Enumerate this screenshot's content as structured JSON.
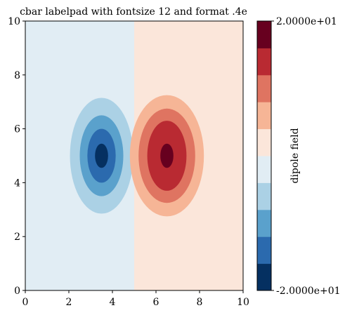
{
  "chart_data": {
    "type": "contourf",
    "title": "cbar labelpad with fontsize 12 and format .4e",
    "x_range": [
      0,
      10
    ],
    "y_range": [
      0,
      10
    ],
    "x_ticks": [
      "0",
      "2",
      "4",
      "6",
      "8",
      "10"
    ],
    "y_ticks": [
      "0",
      "2",
      "4",
      "6",
      "8",
      "10"
    ],
    "field": "dipole: negative lobe centered near (3.5, 5), positive lobe centered near (6.5, 5), sign change along x = 5",
    "negative_lobe": {
      "center": [
        3.5,
        5.0
      ]
    },
    "positive_lobe": {
      "center": [
        6.5,
        5.0
      ]
    },
    "colorbar": {
      "label": "dipole field",
      "min_label": "-2.0000e+01",
      "max_label": "2.0000e+01",
      "levels": 10,
      "colors": [
        "#053061",
        "#2166ac",
        "#4393c3",
        "#92c5de",
        "#d1e5f0",
        "#fddbc7",
        "#f4a582",
        "#d6604d",
        "#b2182b",
        "#67001f"
      ],
      "bands_shown": [
        {
          "color": "#053061"
        },
        {
          "color": "#2b6aae"
        },
        {
          "color": "#5aa1cc"
        },
        {
          "color": "#abd1e5"
        },
        {
          "color": "#e1edf4"
        },
        {
          "color": "#fbe6da"
        },
        {
          "color": "#f6b596"
        },
        {
          "color": "#df7461"
        },
        {
          "color": "#b92a32"
        },
        {
          "color": "#67001f"
        }
      ]
    },
    "filled_regions": [
      {
        "side": "negative",
        "level": 1,
        "color": "#e1edf4",
        "rx": 1.55,
        "ry": 2.3
      },
      {
        "side": "negative",
        "level": 2,
        "color": "#abd1e5",
        "rx": 1.45,
        "ry": 2.15
      },
      {
        "side": "negative",
        "level": 3,
        "color": "#5aa1cc",
        "rx": 1.0,
        "ry": 1.5
      },
      {
        "side": "negative",
        "level": 4,
        "color": "#2b6aae",
        "rx": 0.65,
        "ry": 1.0
      },
      {
        "side": "negative",
        "level": 5,
        "color": "#053061",
        "rx": 0.3,
        "ry": 0.45
      },
      {
        "side": "positive",
        "level": 1,
        "color": "#fbe6da",
        "rx": 1.55,
        "ry": 2.3
      },
      {
        "side": "positive",
        "level": 2,
        "color": "#f6b596",
        "rx": 1.7,
        "ry": 2.25
      },
      {
        "side": "positive",
        "level": 3,
        "color": "#df7461",
        "rx": 1.3,
        "ry": 1.75
      },
      {
        "side": "positive",
        "level": 4,
        "color": "#b92a32",
        "rx": 0.9,
        "ry": 1.3
      },
      {
        "side": "positive",
        "level": 5,
        "color": "#67001f",
        "rx": 0.3,
        "ry": 0.45
      }
    ],
    "grid": false
  }
}
